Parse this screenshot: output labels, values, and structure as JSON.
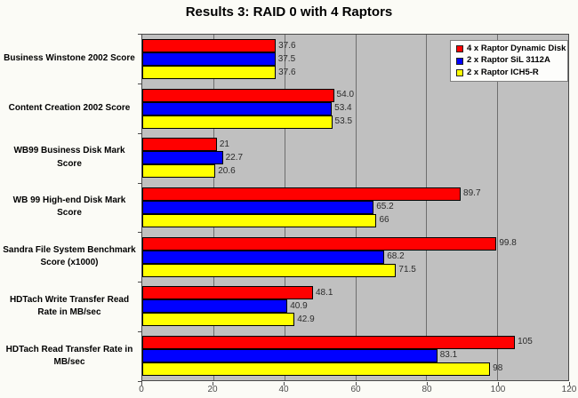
{
  "title": "Results 3: RAID 0 with 4 Raptors",
  "colors": {
    "plot_background": "#c0c0c0",
    "gridline": "#6e6e6e",
    "axis": "#4a4a4a",
    "page_background": "#fbfbf6",
    "legend_background": "#fdfdfb",
    "series_red": "#ff0000",
    "series_blue": "#0000ff",
    "series_yellow": "#ffff00"
  },
  "chart_data": {
    "type": "bar",
    "orientation": "horizontal",
    "title": "Results 3: RAID 0 with 4 Raptors",
    "xlabel": "",
    "ylabel": "",
    "xlim": [
      0,
      120
    ],
    "x_ticks": [
      "0",
      "20",
      "40",
      "60",
      "80",
      "100",
      "120"
    ],
    "grid": true,
    "legend_position": "top-right-inside",
    "categories": [
      "Business Winstone 2002 Score",
      "Content Creation 2002 Score",
      "WB99 Business Disk Mark Score",
      "WB 99 High-end Disk Mark Score",
      "Sandra File System Benchmark Score (x1000)",
      "HDTach Write Transfer Read Rate in MB/sec",
      "HDTach Read Transfer Rate in MB/sec"
    ],
    "series": [
      {
        "name": "4 x Raptor Dynamic Disk",
        "color": "#ff0000",
        "values": [
          37.6,
          54.0,
          21,
          89.7,
          99.8,
          48.1,
          105
        ],
        "labels": [
          "37.6",
          "54.0",
          "21",
          "89.7",
          "99.8",
          "48.1",
          "105"
        ]
      },
      {
        "name": "2 x Raptor SiL 3112A",
        "color": "#0000ff",
        "values": [
          37.5,
          53.4,
          22.7,
          65.2,
          68.2,
          40.9,
          83.1
        ],
        "labels": [
          "37.5",
          "53.4",
          "22.7",
          "65.2",
          "68.2",
          "40.9",
          "83.1"
        ]
      },
      {
        "name": "2 x Raptor ICH5-R",
        "color": "#ffff00",
        "values": [
          37.6,
          53.5,
          20.6,
          66,
          71.5,
          42.9,
          98
        ],
        "labels": [
          "37.6",
          "53.5",
          "20.6",
          "66",
          "71.5",
          "42.9",
          "98"
        ]
      }
    ]
  }
}
